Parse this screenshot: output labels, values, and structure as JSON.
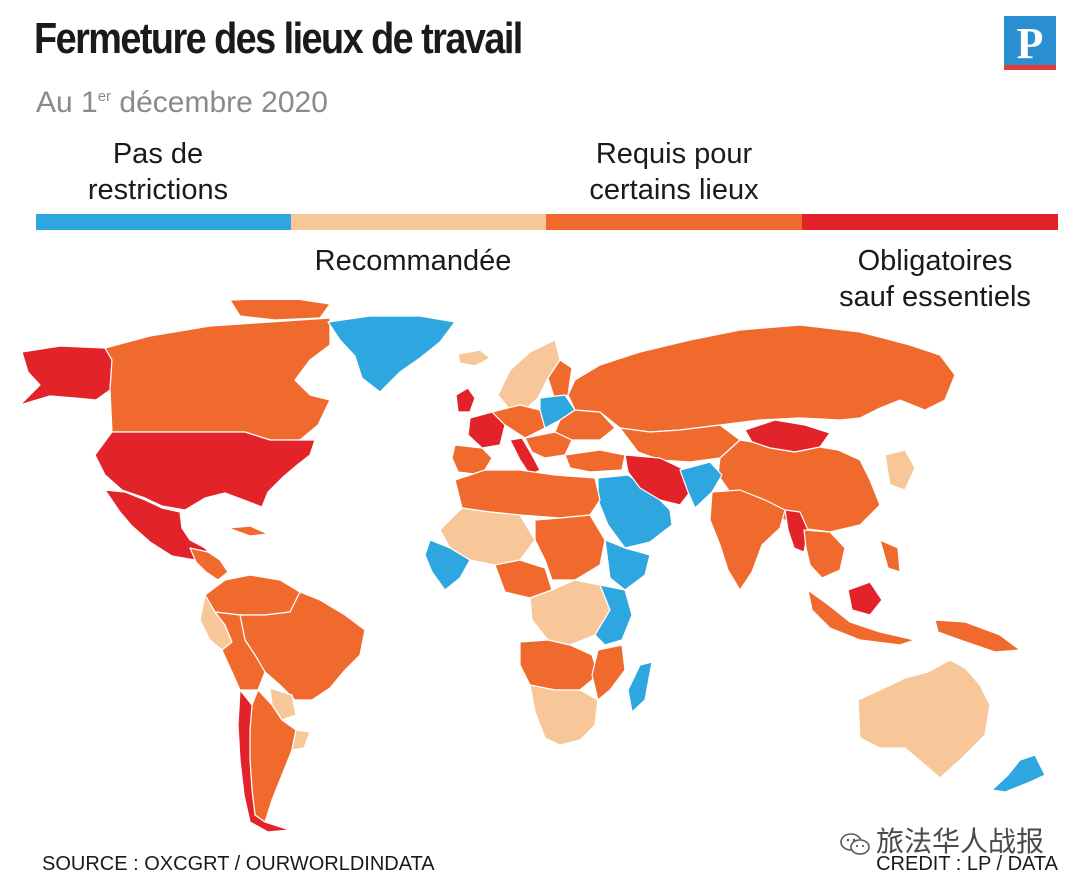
{
  "title": "Fermeture des lieux de travail",
  "subtitle": {
    "prefix": "Au 1",
    "sup": "er",
    "rest": " décembre 2020"
  },
  "logo": {
    "letter": "P",
    "bg_color": "#2a8fd0",
    "stripe_color": "#e63a3a"
  },
  "legend": {
    "items": [
      {
        "id": "none",
        "label_line1": "Pas de",
        "label_line2": "restrictions",
        "color": "#2ea6e0"
      },
      {
        "id": "recommended",
        "label_line1": "Recommandée",
        "label_line2": "",
        "color": "#f7c79a"
      },
      {
        "id": "some",
        "label_line1": "Requis pour",
        "label_line2": "certains lieux",
        "color": "#ef6a2c"
      },
      {
        "id": "mandatory",
        "label_line1": "Obligatoires",
        "label_line2": "sauf essentiels",
        "color": "#e2232a"
      }
    ]
  },
  "source": "SOURCE : OXCGRT / OURWORLDINDATA",
  "credit": "CREDIT : LP / DATA",
  "watermark": {
    "text": "旅法华人战报",
    "icon": "wechat-icon"
  }
}
